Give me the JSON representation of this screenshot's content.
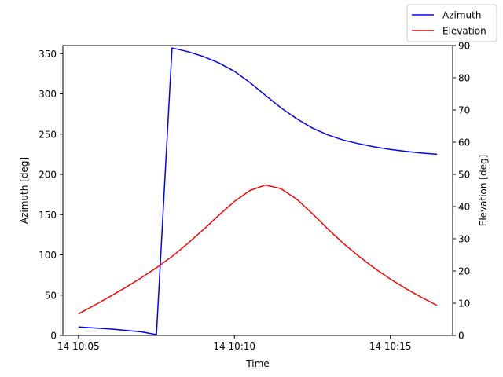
{
  "chart_data": {
    "type": "line",
    "xlabel": "Time",
    "ylabel_left": "Azimuth [deg]",
    "ylabel_right": "Elevation [deg]",
    "x_range": [
      "14 10:04:30",
      "14 10:17:00"
    ],
    "x_ticks": [
      {
        "t": "14 10:05:00",
        "label": "14 10:05"
      },
      {
        "t": "14 10:10:00",
        "label": "14 10:10"
      },
      {
        "t": "14 10:15:00",
        "label": "14 10:15"
      }
    ],
    "y_left": {
      "range": [
        0,
        360
      ],
      "ticks": [
        0,
        50,
        100,
        150,
        200,
        250,
        300,
        350
      ]
    },
    "y_right": {
      "range": [
        0,
        90
      ],
      "ticks": [
        0,
        10,
        20,
        30,
        40,
        50,
        60,
        70,
        80,
        90
      ]
    },
    "grid": false,
    "legend_position": "top-right",
    "series": [
      {
        "name": "Azimuth",
        "axis": "left",
        "color": "#0000ff",
        "points": [
          [
            "14 10:05:00",
            10.5
          ],
          [
            "14 10:06:00",
            8.0
          ],
          [
            "14 10:07:00",
            4.5
          ],
          [
            "14 10:07:30",
            1.0
          ],
          [
            "14 10:08:00",
            357.0
          ],
          [
            "14 10:08:30",
            352.5
          ],
          [
            "14 10:09:00",
            346.5
          ],
          [
            "14 10:09:30",
            338.5
          ],
          [
            "14 10:10:00",
            328.0
          ],
          [
            "14 10:10:30",
            314.0
          ],
          [
            "14 10:11:00",
            298.0
          ],
          [
            "14 10:11:30",
            282.5
          ],
          [
            "14 10:12:00",
            269.0
          ],
          [
            "14 10:12:30",
            257.5
          ],
          [
            "14 10:13:00",
            249.0
          ],
          [
            "14 10:13:30",
            242.5
          ],
          [
            "14 10:14:00",
            238.0
          ],
          [
            "14 10:14:30",
            234.0
          ],
          [
            "14 10:15:00",
            231.0
          ],
          [
            "14 10:15:30",
            228.5
          ],
          [
            "14 10:16:00",
            226.5
          ],
          [
            "14 10:16:30",
            225.0
          ]
        ]
      },
      {
        "name": "Elevation",
        "axis": "right",
        "color": "#ff0000",
        "points": [
          [
            "14 10:05:00",
            6.7
          ],
          [
            "14 10:05:30",
            9.3
          ],
          [
            "14 10:06:00",
            12.0
          ],
          [
            "14 10:06:30",
            14.8
          ],
          [
            "14 10:07:00",
            17.8
          ],
          [
            "14 10:07:30",
            21.0
          ],
          [
            "14 10:08:00",
            24.5
          ],
          [
            "14 10:08:30",
            28.5
          ],
          [
            "14 10:09:00",
            32.8
          ],
          [
            "14 10:09:30",
            37.3
          ],
          [
            "14 10:10:00",
            41.6
          ],
          [
            "14 10:10:30",
            45.0
          ],
          [
            "14 10:11:00",
            46.7
          ],
          [
            "14 10:11:30",
            45.5
          ],
          [
            "14 10:12:00",
            42.3
          ],
          [
            "14 10:12:30",
            37.8
          ],
          [
            "14 10:13:00",
            33.0
          ],
          [
            "14 10:13:30",
            28.5
          ],
          [
            "14 10:14:00",
            24.5
          ],
          [
            "14 10:14:30",
            20.8
          ],
          [
            "14 10:15:00",
            17.5
          ],
          [
            "14 10:15:30",
            14.5
          ],
          [
            "14 10:16:00",
            11.8
          ],
          [
            "14 10:16:30",
            9.3
          ]
        ]
      }
    ]
  }
}
